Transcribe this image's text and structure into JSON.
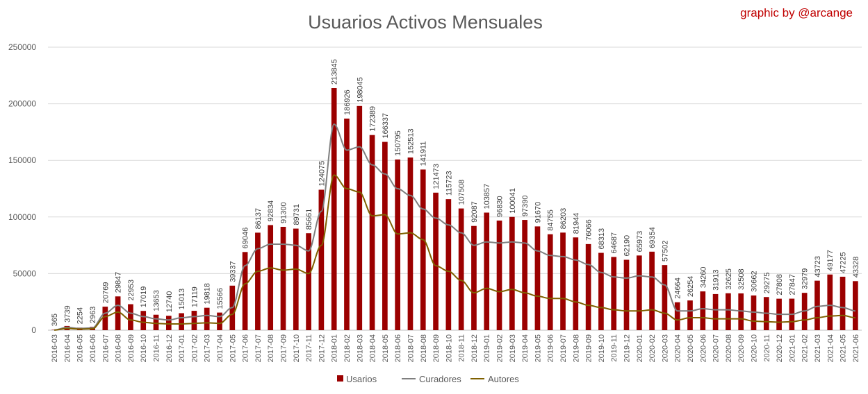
{
  "chart_data": {
    "type": "bar",
    "title": "Usuarios Activos Mensuales",
    "credit": "graphic by @arcange",
    "xlabel": "",
    "ylabel": "",
    "ylim": [
      0,
      250000
    ],
    "yticks": [
      0,
      50000,
      100000,
      150000,
      200000,
      250000
    ],
    "grid": true,
    "legend_position": "bottom",
    "categories": [
      "2016-03",
      "2016-04",
      "2016-05",
      "2016-06",
      "2016-07",
      "2016-08",
      "2016-09",
      "2016-10",
      "2016-11",
      "2016-12",
      "2017-01",
      "2017-02",
      "2017-03",
      "2017-04",
      "2017-05",
      "2017-06",
      "2017-07",
      "2017-08",
      "2017-09",
      "2017-10",
      "2017-11",
      "2017-12",
      "2018-01",
      "2018-02",
      "2018-03",
      "2018-04",
      "2018-05",
      "2018-06",
      "2018-07",
      "2018-08",
      "2018-09",
      "2018-10",
      "2018-11",
      "2018-12",
      "2019-01",
      "2019-02",
      "2019-03",
      "2019-04",
      "2019-05",
      "2019-06",
      "2019-07",
      "2019-08",
      "2019-09",
      "2019-10",
      "2019-11",
      "2019-12",
      "2020-01",
      "2020-02",
      "2020-03",
      "2020-04",
      "2020-05",
      "2020-06",
      "2020-07",
      "2020-08",
      "2020-09",
      "2020-10",
      "2020-11",
      "2020-12",
      "2021-01",
      "2021-02",
      "2021-03",
      "2021-04",
      "2021-05",
      "2021-06"
    ],
    "series": [
      {
        "name": "Usarios",
        "type": "bar",
        "color": "#9b0000",
        "labels": true,
        "values": [
          365,
          3739,
          2254,
          2963,
          20769,
          29847,
          22953,
          17019,
          13653,
          12740,
          15013,
          17119,
          19818,
          15566,
          39337,
          69046,
          86137,
          92834,
          91300,
          89731,
          85661,
          124075,
          213845,
          186926,
          198045,
          172389,
          166337,
          150795,
          152513,
          141911,
          121473,
          115723,
          107508,
          92087,
          103857,
          96830,
          100041,
          97390,
          91670,
          84755,
          86203,
          81944,
          76066,
          68313,
          64687,
          62190,
          65973,
          69354,
          57502,
          24664,
          26254,
          34260,
          31913,
          32625,
          32508,
          30662,
          29275,
          27808,
          27847,
          32979,
          43723,
          49177,
          47225,
          43328
        ]
      },
      {
        "name": "Curadores",
        "type": "line",
        "color": "#7f7f7f",
        "values": [
          200,
          2500,
          1500,
          2000,
          15000,
          22000,
          15000,
          12000,
          10000,
          9000,
          11000,
          12000,
          13000,
          12000,
          20000,
          57000,
          72000,
          76000,
          76000,
          75000,
          70000,
          105000,
          182000,
          159000,
          162000,
          146000,
          138000,
          125000,
          119000,
          107000,
          99000,
          93000,
          86000,
          75000,
          78000,
          77000,
          78000,
          77000,
          70000,
          66000,
          65000,
          62000,
          58000,
          51000,
          47000,
          46000,
          48000,
          47000,
          40000,
          17000,
          17000,
          19000,
          18000,
          18000,
          17000,
          16000,
          15000,
          14000,
          14000,
          17000,
          21000,
          22000,
          20000,
          17000
        ]
      },
      {
        "name": "Autores",
        "type": "line",
        "color": "#7f6000",
        "values": [
          100,
          1500,
          1000,
          1200,
          12000,
          16000,
          9000,
          7000,
          6000,
          5500,
          5500,
          6000,
          6500,
          6000,
          14000,
          41000,
          52000,
          55000,
          53000,
          54000,
          50000,
          75000,
          137000,
          125000,
          122000,
          101000,
          102000,
          85000,
          86000,
          80000,
          57000,
          52000,
          44000,
          33000,
          37000,
          34000,
          36000,
          33000,
          30000,
          28000,
          28000,
          25000,
          22000,
          20000,
          18000,
          17000,
          17000,
          18000,
          15000,
          9000,
          11000,
          11000,
          10000,
          10000,
          10000,
          8000,
          7500,
          7000,
          7500,
          9000,
          11000,
          12500,
          13000,
          11000
        ]
      }
    ]
  }
}
